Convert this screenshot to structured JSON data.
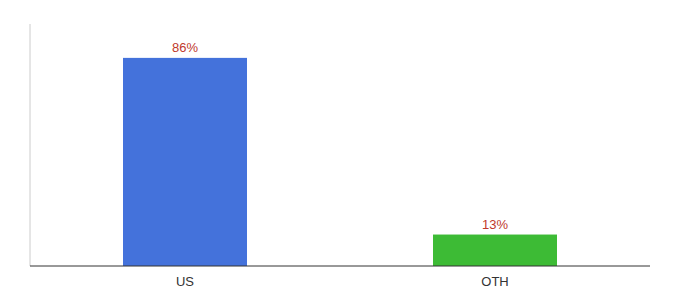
{
  "chart_data": {
    "type": "bar",
    "categories": [
      "US",
      "OTH"
    ],
    "values": [
      86,
      13
    ],
    "value_labels": [
      "86%",
      "13%"
    ],
    "data_labels": true,
    "colors": [
      "#4472db",
      "#3dbb35"
    ],
    "ylim": [
      0,
      100
    ],
    "tick_labels": "x"
  }
}
